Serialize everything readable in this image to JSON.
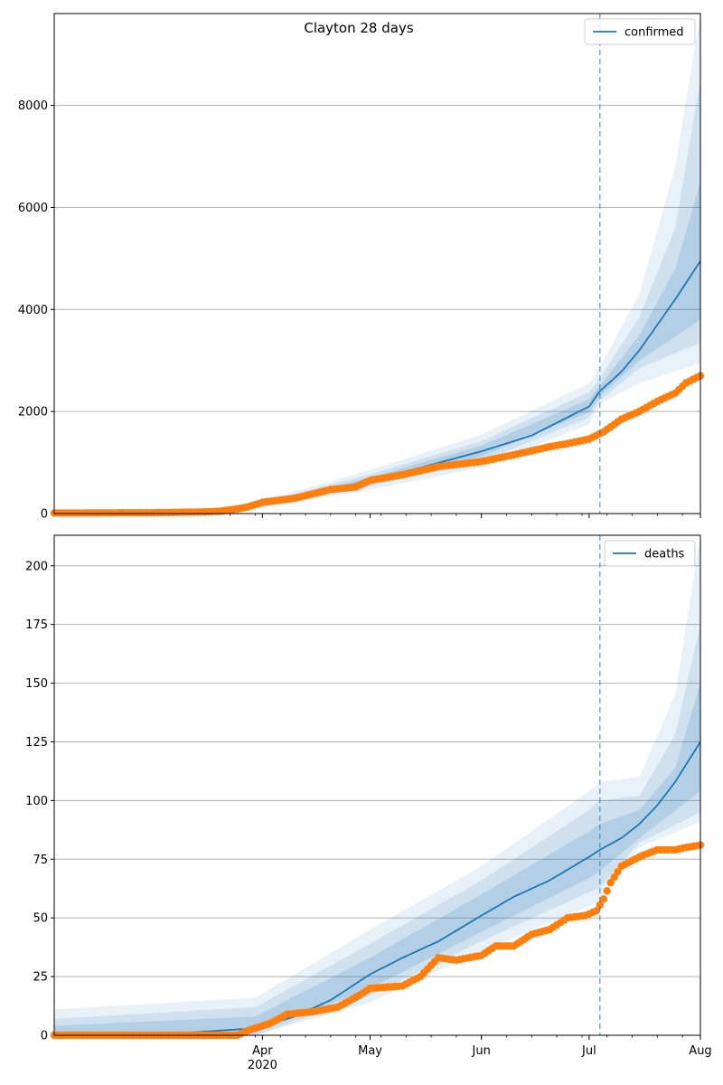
{
  "figure": {
    "title": "Clayton 28 days"
  },
  "colors": {
    "median": "#1f77b4",
    "band": "#1f77b4",
    "observed": "#ff7f0e",
    "grid": "#b0b0b0",
    "forecast_line": "#1f77b4"
  },
  "chart_data": [
    {
      "type": "line",
      "title": "Clayton 28 days",
      "series_name": "confirmed",
      "legend": "top-right",
      "grid": "y",
      "x_range": [
        "2020-02-03",
        "2020-08-01"
      ],
      "ylim": [
        0,
        9800
      ],
      "y_ticks": [
        0,
        2000,
        4000,
        6000,
        8000
      ],
      "x_ticks": [
        {
          "date": "2020-04-01",
          "label": "Apr",
          "sub": "2020"
        },
        {
          "date": "2020-05-01",
          "label": "May",
          "sub": ""
        },
        {
          "date": "2020-06-01",
          "label": "Jun",
          "sub": ""
        },
        {
          "date": "2020-07-01",
          "label": "Jul",
          "sub": ""
        },
        {
          "date": "2020-08-01",
          "label": "Aug",
          "sub": ""
        }
      ],
      "forecast_start": "2020-07-04",
      "median": [
        [
          "2020-02-03",
          10
        ],
        [
          "2020-03-01",
          20
        ],
        [
          "2020-03-15",
          40
        ],
        [
          "2020-03-25",
          90
        ],
        [
          "2020-04-01",
          180
        ],
        [
          "2020-04-15",
          380
        ],
        [
          "2020-05-01",
          650
        ],
        [
          "2020-05-15",
          900
        ],
        [
          "2020-06-01",
          1220
        ],
        [
          "2020-06-15",
          1530
        ],
        [
          "2020-07-01",
          2100
        ],
        [
          "2020-07-04",
          2400
        ],
        [
          "2020-07-10",
          2780
        ],
        [
          "2020-07-15",
          3200
        ],
        [
          "2020-07-20",
          3700
        ],
        [
          "2020-07-25",
          4200
        ],
        [
          "2020-08-01",
          4950
        ]
      ],
      "bands": [
        {
          "level": "outer",
          "lower": [
            [
              "2020-02-03",
              0
            ],
            [
              "2020-03-15",
              20
            ],
            [
              "2020-04-01",
              110
            ],
            [
              "2020-05-01",
              470
            ],
            [
              "2020-06-01",
              900
            ],
            [
              "2020-07-01",
              1750
            ],
            [
              "2020-07-04",
              2150
            ],
            [
              "2020-07-15",
              2550
            ],
            [
              "2020-08-01",
              2950
            ]
          ],
          "upper": [
            [
              "2020-02-03",
              30
            ],
            [
              "2020-03-15",
              70
            ],
            [
              "2020-04-01",
              260
            ],
            [
              "2020-05-01",
              850
            ],
            [
              "2020-06-01",
              1550
            ],
            [
              "2020-07-01",
              2550
            ],
            [
              "2020-07-04",
              2880
            ],
            [
              "2020-07-15",
              4300
            ],
            [
              "2020-07-25",
              6800
            ],
            [
              "2020-08-01",
              9800
            ]
          ]
        },
        {
          "level": "middle",
          "lower": [
            [
              "2020-02-03",
              0
            ],
            [
              "2020-03-15",
              25
            ],
            [
              "2020-04-01",
              130
            ],
            [
              "2020-05-01",
              540
            ],
            [
              "2020-06-01",
              1020
            ],
            [
              "2020-07-01",
              1880
            ],
            [
              "2020-07-04",
              2220
            ],
            [
              "2020-07-15",
              2850
            ],
            [
              "2020-08-01",
              3350
            ]
          ],
          "upper": [
            [
              "2020-02-03",
              25
            ],
            [
              "2020-03-15",
              60
            ],
            [
              "2020-04-01",
              230
            ],
            [
              "2020-05-01",
              770
            ],
            [
              "2020-06-01",
              1420
            ],
            [
              "2020-07-01",
              2380
            ],
            [
              "2020-07-04",
              2650
            ],
            [
              "2020-07-15",
              3850
            ],
            [
              "2020-07-25",
              5600
            ],
            [
              "2020-08-01",
              8500
            ]
          ]
        },
        {
          "level": "inner",
          "lower": [
            [
              "2020-02-03",
              5
            ],
            [
              "2020-03-15",
              30
            ],
            [
              "2020-04-01",
              150
            ],
            [
              "2020-05-01",
              590
            ],
            [
              "2020-06-01",
              1120
            ],
            [
              "2020-07-01",
              1990
            ],
            [
              "2020-07-04",
              2300
            ],
            [
              "2020-07-15",
              3000
            ],
            [
              "2020-08-01",
              3800
            ]
          ],
          "upper": [
            [
              "2020-02-03",
              18
            ],
            [
              "2020-03-15",
              52
            ],
            [
              "2020-04-01",
              210
            ],
            [
              "2020-05-01",
              710
            ],
            [
              "2020-06-01",
              1330
            ],
            [
              "2020-07-01",
              2240
            ],
            [
              "2020-07-04",
              2500
            ],
            [
              "2020-07-15",
              3500
            ],
            [
              "2020-07-25",
              4800
            ],
            [
              "2020-08-01",
              6500
            ]
          ]
        }
      ],
      "observed": [
        [
          "2020-02-03",
          10
        ],
        [
          "2020-03-01",
          15
        ],
        [
          "2020-03-15",
          30
        ],
        [
          "2020-03-20",
          45
        ],
        [
          "2020-03-25",
          90
        ],
        [
          "2020-03-28",
          130
        ],
        [
          "2020-04-01",
          220
        ],
        [
          "2020-04-10",
          300
        ],
        [
          "2020-04-20",
          470
        ],
        [
          "2020-04-27",
          520
        ],
        [
          "2020-05-01",
          650
        ],
        [
          "2020-05-10",
          760
        ],
        [
          "2020-05-20",
          920
        ],
        [
          "2020-05-25",
          960
        ],
        [
          "2020-06-01",
          1020
        ],
        [
          "2020-06-10",
          1150
        ],
        [
          "2020-06-20",
          1310
        ],
        [
          "2020-06-25",
          1370
        ],
        [
          "2020-07-01",
          1460
        ],
        [
          "2020-07-05",
          1600
        ],
        [
          "2020-07-10",
          1850
        ],
        [
          "2020-07-15",
          2000
        ],
        [
          "2020-07-20",
          2200
        ],
        [
          "2020-07-25",
          2360
        ],
        [
          "2020-07-28",
          2560
        ],
        [
          "2020-08-01",
          2700
        ]
      ]
    },
    {
      "type": "line",
      "series_name": "deaths",
      "legend": "top-right",
      "grid": "y",
      "x_range": [
        "2020-02-03",
        "2020-08-01"
      ],
      "ylim": [
        0,
        213
      ],
      "y_ticks": [
        0,
        25,
        50,
        75,
        100,
        125,
        150,
        175,
        200
      ],
      "x_ticks": [
        {
          "date": "2020-04-01",
          "label": "Apr",
          "sub": "2020"
        },
        {
          "date": "2020-05-01",
          "label": "May",
          "sub": ""
        },
        {
          "date": "2020-06-01",
          "label": "Jun",
          "sub": ""
        },
        {
          "date": "2020-07-01",
          "label": "Jul",
          "sub": ""
        },
        {
          "date": "2020-08-01",
          "label": "Aug",
          "sub": ""
        }
      ],
      "forecast_start": "2020-07-04",
      "median": [
        [
          "2020-02-03",
          0
        ],
        [
          "2020-03-10",
          1
        ],
        [
          "2020-03-30",
          3
        ],
        [
          "2020-04-10",
          8
        ],
        [
          "2020-04-20",
          15
        ],
        [
          "2020-05-01",
          26
        ],
        [
          "2020-05-10",
          33
        ],
        [
          "2020-05-20",
          40
        ],
        [
          "2020-06-01",
          51
        ],
        [
          "2020-06-10",
          59
        ],
        [
          "2020-06-20",
          66
        ],
        [
          "2020-07-01",
          76
        ],
        [
          "2020-07-04",
          79
        ],
        [
          "2020-07-10",
          84
        ],
        [
          "2020-07-15",
          90
        ],
        [
          "2020-07-20",
          98
        ],
        [
          "2020-07-25",
          108
        ],
        [
          "2020-08-01",
          125
        ]
      ],
      "bands": [
        {
          "level": "outer",
          "lower": [
            [
              "2020-02-03",
              0
            ],
            [
              "2020-03-30",
              0
            ],
            [
              "2020-05-01",
              14
            ],
            [
              "2020-06-01",
              36
            ],
            [
              "2020-07-01",
              55
            ],
            [
              "2020-07-04",
              57
            ],
            [
              "2020-07-15",
              80
            ],
            [
              "2020-08-01",
              91
            ]
          ],
          "upper": [
            [
              "2020-02-03",
              11
            ],
            [
              "2020-03-30",
              16
            ],
            [
              "2020-05-01",
              45
            ],
            [
              "2020-06-01",
              72
            ],
            [
              "2020-07-01",
              104
            ],
            [
              "2020-07-04",
              108
            ],
            [
              "2020-07-15",
              110
            ],
            [
              "2020-07-25",
              145
            ],
            [
              "2020-08-01",
              213
            ]
          ]
        },
        {
          "level": "middle",
          "lower": [
            [
              "2020-02-03",
              0
            ],
            [
              "2020-03-30",
              0
            ],
            [
              "2020-05-01",
              17
            ],
            [
              "2020-06-01",
              40
            ],
            [
              "2020-07-01",
              61
            ],
            [
              "2020-07-04",
              63
            ],
            [
              "2020-07-15",
              82
            ],
            [
              "2020-08-01",
              95
            ]
          ],
          "upper": [
            [
              "2020-02-03",
              7
            ],
            [
              "2020-03-30",
              12
            ],
            [
              "2020-05-01",
              39
            ],
            [
              "2020-06-01",
              66
            ],
            [
              "2020-07-01",
              96
            ],
            [
              "2020-07-04",
              100
            ],
            [
              "2020-07-15",
              102
            ],
            [
              "2020-07-25",
              128
            ],
            [
              "2020-08-01",
              175
            ]
          ]
        },
        {
          "level": "inner",
          "lower": [
            [
              "2020-02-03",
              0
            ],
            [
              "2020-03-30",
              1
            ],
            [
              "2020-05-01",
              20
            ],
            [
              "2020-06-01",
              44
            ],
            [
              "2020-07-01",
              67
            ],
            [
              "2020-07-04",
              70
            ],
            [
              "2020-07-15",
              84
            ],
            [
              "2020-08-01",
              104
            ]
          ],
          "upper": [
            [
              "2020-02-03",
              4
            ],
            [
              "2020-03-30",
              8
            ],
            [
              "2020-05-01",
              33
            ],
            [
              "2020-06-01",
              60
            ],
            [
              "2020-07-01",
              87
            ],
            [
              "2020-07-04",
              90
            ],
            [
              "2020-07-15",
              96
            ],
            [
              "2020-07-25",
              114
            ],
            [
              "2020-08-01",
              150
            ]
          ]
        }
      ],
      "observed": [
        [
          "2020-02-03",
          0
        ],
        [
          "2020-03-25",
          0
        ],
        [
          "2020-03-28",
          2
        ],
        [
          "2020-04-03",
          5
        ],
        [
          "2020-04-08",
          9
        ],
        [
          "2020-04-15",
          10
        ],
        [
          "2020-04-22",
          12
        ],
        [
          "2020-04-28",
          17
        ],
        [
          "2020-05-01",
          20
        ],
        [
          "2020-05-10",
          21
        ],
        [
          "2020-05-15",
          25
        ],
        [
          "2020-05-20",
          33
        ],
        [
          "2020-05-25",
          32
        ],
        [
          "2020-06-01",
          34
        ],
        [
          "2020-06-05",
          38
        ],
        [
          "2020-06-10",
          38
        ],
        [
          "2020-06-15",
          43
        ],
        [
          "2020-06-20",
          45
        ],
        [
          "2020-06-25",
          50
        ],
        [
          "2020-06-30",
          51
        ],
        [
          "2020-07-03",
          53
        ],
        [
          "2020-07-05",
          58
        ],
        [
          "2020-07-07",
          65
        ],
        [
          "2020-07-10",
          72
        ],
        [
          "2020-07-15",
          76
        ],
        [
          "2020-07-20",
          79
        ],
        [
          "2020-07-25",
          79
        ],
        [
          "2020-07-28",
          80
        ],
        [
          "2020-08-01",
          81
        ]
      ]
    }
  ]
}
